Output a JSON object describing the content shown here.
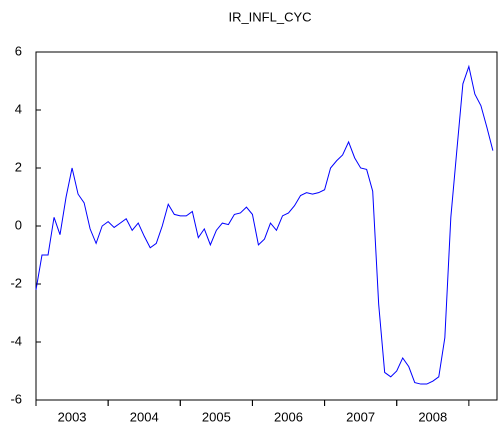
{
  "chart_data": {
    "type": "line",
    "title": "IR_INFL_CYC",
    "x": [
      2003,
      2003.083,
      2003.167,
      2003.25,
      2003.333,
      2003.417,
      2003.5,
      2003.583,
      2003.667,
      2003.75,
      2003.833,
      2003.917,
      2004,
      2004.083,
      2004.167,
      2004.25,
      2004.333,
      2004.417,
      2004.5,
      2004.583,
      2004.667,
      2004.75,
      2004.833,
      2004.917,
      2005,
      2005.083,
      2005.167,
      2005.25,
      2005.333,
      2005.417,
      2005.5,
      2005.583,
      2005.667,
      2005.75,
      2005.833,
      2005.917,
      2006,
      2006.083,
      2006.167,
      2006.25,
      2006.333,
      2006.417,
      2006.5,
      2006.583,
      2006.667,
      2006.75,
      2006.833,
      2006.917,
      2007,
      2007.083,
      2007.167,
      2007.25,
      2007.333,
      2007.417,
      2007.5,
      2007.583,
      2007.667,
      2007.75,
      2007.833,
      2007.917,
      2008,
      2008.083,
      2008.167,
      2008.25,
      2008.333,
      2008.417,
      2008.5,
      2008.583,
      2008.667,
      2008.75,
      2008.833,
      2008.917,
      2009,
      2009.083,
      2009.167,
      2009.25,
      2009.333
    ],
    "series": [
      {
        "name": "IR_INFL_CYC",
        "color": "#0000ff",
        "values": [
          -2.2,
          -1.0,
          -1.0,
          0.3,
          -0.3,
          1.0,
          2.0,
          1.1,
          0.8,
          -0.1,
          -0.6,
          0.0,
          0.15,
          -0.05,
          0.1,
          0.25,
          -0.15,
          0.1,
          -0.35,
          -0.75,
          -0.6,
          0.0,
          0.75,
          0.4,
          0.35,
          0.35,
          0.5,
          -0.4,
          -0.1,
          -0.65,
          -0.15,
          0.1,
          0.05,
          0.4,
          0.45,
          0.65,
          0.4,
          -0.65,
          -0.45,
          0.1,
          -0.15,
          0.35,
          0.45,
          0.7,
          1.05,
          1.15,
          1.1,
          1.15,
          1.25,
          2.0,
          2.25,
          2.45,
          2.9,
          2.35,
          2.0,
          1.95,
          1.2,
          -2.7,
          -5.05,
          -5.2,
          -5.0,
          -4.55,
          -4.85,
          -5.4,
          -5.45,
          -5.45,
          -5.35,
          -5.2,
          -3.85,
          0.3,
          2.6,
          4.9,
          5.5,
          4.55,
          4.15,
          3.4,
          2.6
        ]
      }
    ],
    "xlim": [
      2003,
      2009.39
    ],
    "xticks": [
      {
        "value": 2003.5,
        "label": "2003"
      },
      {
        "value": 2004.5,
        "label": "2004"
      },
      {
        "value": 2005.5,
        "label": "2005"
      },
      {
        "value": 2006.5,
        "label": "2006"
      },
      {
        "value": 2007.5,
        "label": "2007"
      },
      {
        "value": 2008.5,
        "label": "2008"
      }
    ],
    "ylim": [
      -6,
      6
    ],
    "yticks": [
      -6,
      -4,
      -2,
      0,
      2,
      4,
      6
    ]
  }
}
